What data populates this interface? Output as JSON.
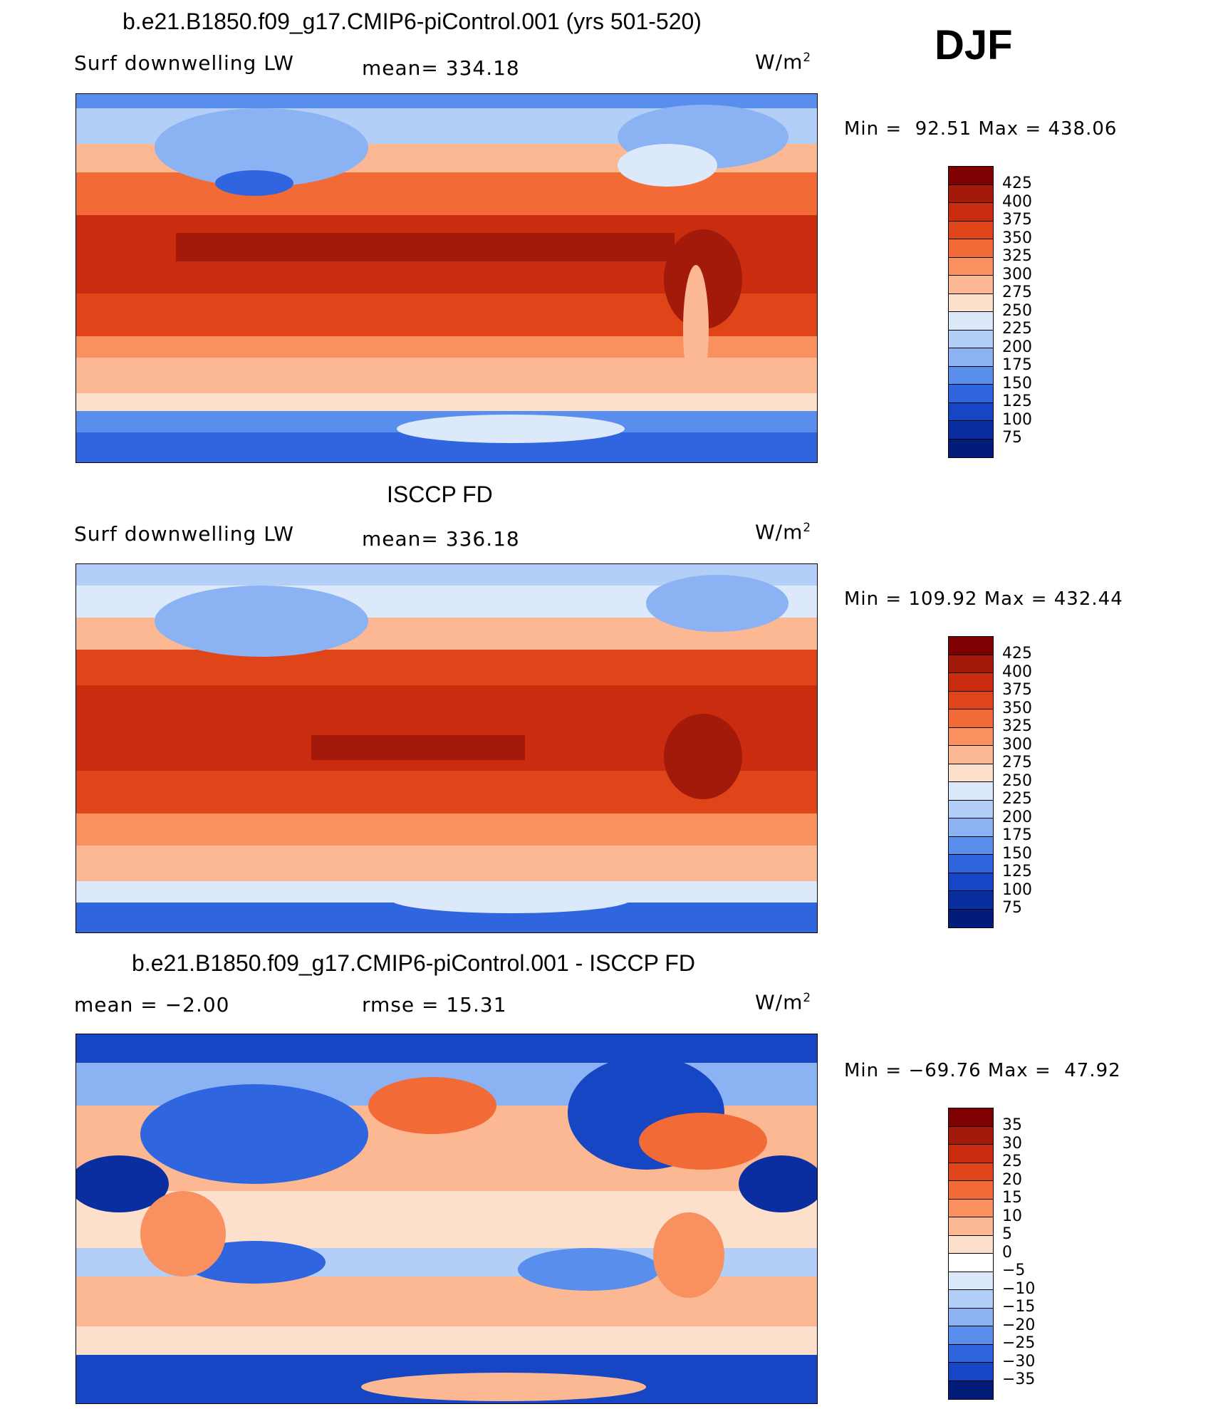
{
  "season": "DJF",
  "panels": [
    {
      "title": "b.e21.B1850.f09_g17.CMIP6-piControl.001 (yrs 501-520)",
      "left_label": "Surf downwelling LW",
      "mid_label": "mean= 334.18",
      "units": "W/m",
      "units_sup": "2",
      "minmax": "Min =  92.51 Max = 438.06",
      "colorbar": {
        "labels": [
          "425",
          "400",
          "375",
          "350",
          "325",
          "300",
          "275",
          "250",
          "225",
          "200",
          "175",
          "150",
          "125",
          "100",
          "75"
        ],
        "colors": [
          "#7f0000",
          "#a31a0a",
          "#c92c0f",
          "#e0451a",
          "#f26a35",
          "#f89060",
          "#fbb893",
          "#fde0cc",
          "#dbe9fb",
          "#b4cff7",
          "#8bb2f2",
          "#5a8eec",
          "#2f66e0",
          "#1746c4",
          "#0a2ea0",
          "#031c7a"
        ]
      }
    },
    {
      "title": "ISCCP FD",
      "left_label": "Surf downwelling LW",
      "mid_label": "mean= 336.18",
      "units": "W/m",
      "units_sup": "2",
      "minmax": "Min = 109.92 Max = 432.44",
      "colorbar": {
        "labels": [
          "425",
          "400",
          "375",
          "350",
          "325",
          "300",
          "275",
          "250",
          "225",
          "200",
          "175",
          "150",
          "125",
          "100",
          "75"
        ],
        "colors": [
          "#7f0000",
          "#a31a0a",
          "#c92c0f",
          "#e0451a",
          "#f26a35",
          "#f89060",
          "#fbb893",
          "#fde0cc",
          "#dbe9fb",
          "#b4cff7",
          "#8bb2f2",
          "#5a8eec",
          "#2f66e0",
          "#1746c4",
          "#0a2ea0",
          "#031c7a"
        ]
      }
    },
    {
      "title": "b.e21.B1850.f09_g17.CMIP6-piControl.001 - ISCCP FD",
      "left_label": "mean =  −2.00",
      "mid_label": "rmse =   15.31",
      "units": "W/m",
      "units_sup": "2",
      "minmax": "Min = −69.76 Max =  47.92",
      "colorbar": {
        "labels": [
          "35",
          "30",
          "25",
          "20",
          "15",
          "10",
          "5",
          "0",
          "−5",
          "−10",
          "−15",
          "−20",
          "−25",
          "−30",
          "−35"
        ],
        "colors": [
          "#7f0000",
          "#a31a0a",
          "#c92c0f",
          "#e0451a",
          "#f26a35",
          "#f89060",
          "#fbb893",
          "#fde0cc",
          "#ffffff",
          "#dbe9fb",
          "#b4cff7",
          "#8bb2f2",
          "#5a8eec",
          "#2f66e0",
          "#1746c4",
          "#031c7a"
        ]
      }
    }
  ],
  "chart_data": [
    {
      "type": "heatmap",
      "title": "b.e21.B1850.f09_g17.CMIP6-piControl.001 (yrs 501-520)",
      "variable": "Surf downwelling LW",
      "season": "DJF",
      "units": "W/m2",
      "mean": 334.18,
      "min": 92.51,
      "max": 438.06,
      "levels": [
        75,
        100,
        125,
        150,
        175,
        200,
        225,
        250,
        275,
        300,
        325,
        350,
        375,
        400,
        425
      ]
    },
    {
      "type": "heatmap",
      "title": "ISCCP FD",
      "variable": "Surf downwelling LW",
      "season": "DJF",
      "units": "W/m2",
      "mean": 336.18,
      "min": 109.92,
      "max": 432.44,
      "levels": [
        75,
        100,
        125,
        150,
        175,
        200,
        225,
        250,
        275,
        300,
        325,
        350,
        375,
        400,
        425
      ]
    },
    {
      "type": "heatmap",
      "title": "b.e21.B1850.f09_g17.CMIP6-piControl.001 - ISCCP FD",
      "season": "DJF",
      "units": "W/m2",
      "mean": -2.0,
      "rmse": 15.31,
      "min": -69.76,
      "max": 47.92,
      "levels": [
        -35,
        -30,
        -25,
        -20,
        -15,
        -10,
        -5,
        0,
        5,
        10,
        15,
        20,
        25,
        30,
        35
      ]
    }
  ]
}
